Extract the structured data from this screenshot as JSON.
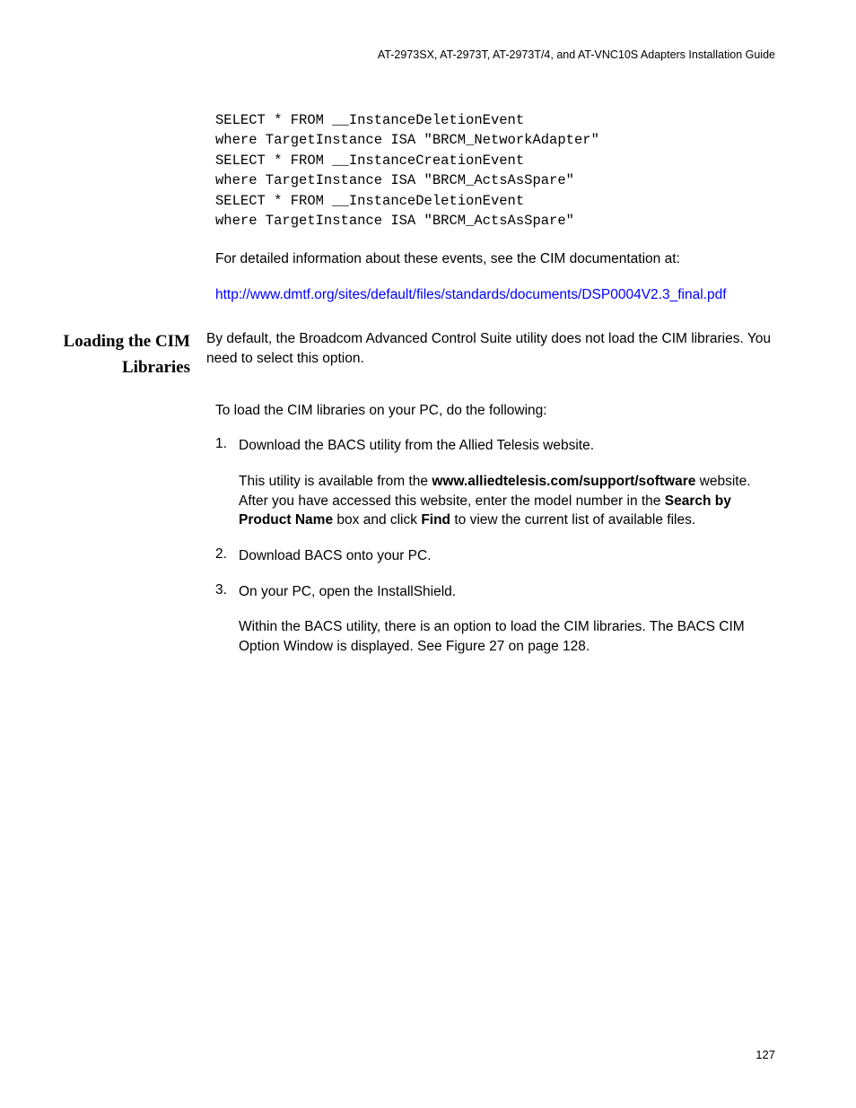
{
  "header": {
    "title": "AT-2973SX, AT-2973T, AT-2973T/4, and AT-VNC10S Adapters Installation Guide"
  },
  "code": {
    "line1": "SELECT * FROM __InstanceDeletionEvent",
    "line2": "where TargetInstance ISA \"BRCM_NetworkAdapter\"",
    "line3": "SELECT * FROM __InstanceCreationEvent",
    "line4": "where TargetInstance ISA \"BRCM_ActsAsSpare\"",
    "line5": "SELECT * FROM __InstanceDeletionEvent",
    "line6": "where TargetInstance ISA \"BRCM_ActsAsSpare\""
  },
  "intro": {
    "para1": "For detailed information about these events, see the CIM documentation at:",
    "link": "http://www.dmtf.org/sites/default/files/standards/documents/DSP0004V2.3_final.pdf"
  },
  "section": {
    "heading_line1": "Loading the CIM",
    "heading_line2": "Libraries",
    "para1": "By default, the Broadcom Advanced Control Suite utility does not load the CIM libraries. You need to select this option.",
    "para2": "To load the CIM libraries on your PC, do the following:",
    "item1_num": "1.",
    "item1_text": "Download the BACS utility from the Allied Telesis website.",
    "item1_sub_pre": "This utility is available from the ",
    "item1_sub_bold1": "www.alliedtelesis.com/support/software",
    "item1_sub_mid1": " website. After you have accessed this website, enter the model number in the ",
    "item1_sub_bold2": "Search by Product Name",
    "item1_sub_mid2": " box and click ",
    "item1_sub_bold3": "Find",
    "item1_sub_end": " to view the current list of available files.",
    "item2_num": "2.",
    "item2_text": "Download BACS onto your PC.",
    "item3_num": "3.",
    "item3_text": "On your PC, open the InstallShield.",
    "item3_sub": "Within the BACS utility, there is an option to load the CIM libraries. The BACS CIM Option Window is displayed. See Figure 27 on page 128."
  },
  "footer": {
    "page_number": "127"
  }
}
